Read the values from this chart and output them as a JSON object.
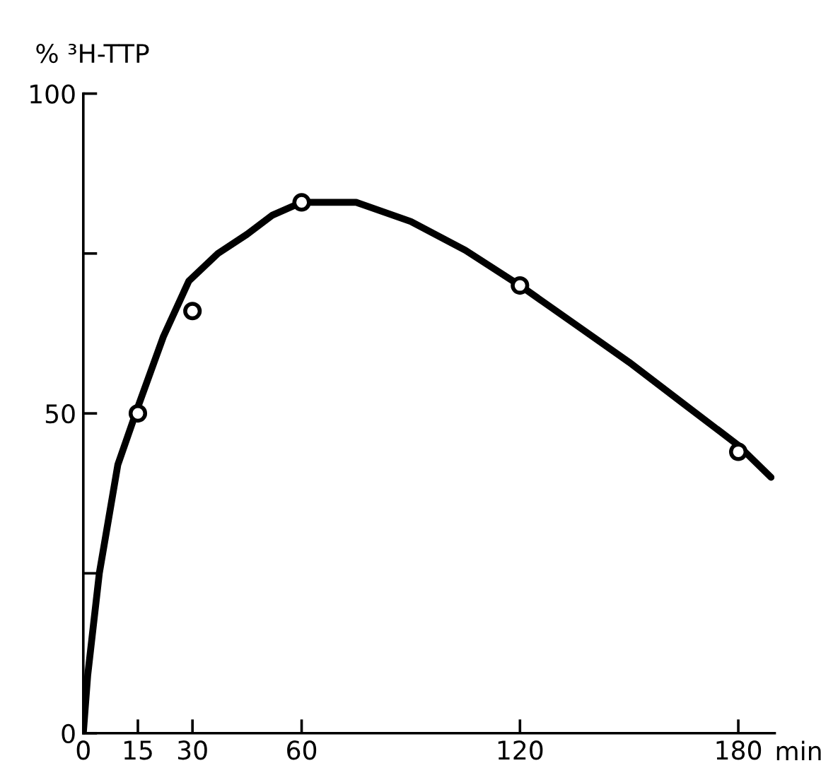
{
  "chart_data": {
    "type": "scatter",
    "ylabel": "% ³H-TTP",
    "xlabel": "min",
    "xlim": [
      0,
      190
    ],
    "ylim": [
      0,
      100
    ],
    "xticks": [
      0,
      15,
      30,
      60,
      120,
      180
    ],
    "yticks": [
      0,
      {
        "value": 25,
        "label": null
      },
      50,
      {
        "value": 75,
        "label": null
      },
      100
    ],
    "grid": false,
    "legend": false,
    "series": [
      {
        "type": "line",
        "color": "#000000",
        "marker": "none",
        "line_style": "solid",
        "x": [
          0,
          1.2,
          4.4,
          9.5,
          15,
          22,
          29,
          37,
          45,
          52,
          60,
          75,
          90,
          105,
          120,
          135,
          150,
          165,
          180,
          189
        ],
        "values": [
          0,
          9,
          25,
          42,
          51,
          62,
          70.7,
          75,
          78,
          81,
          83,
          83,
          80,
          75.5,
          70,
          64,
          58,
          51.5,
          45,
          40
        ]
      },
      {
        "color": "#000000",
        "marker": "circle",
        "x": [
          15,
          30,
          60,
          120,
          180
        ],
        "values": [
          50,
          66,
          83,
          70,
          44
        ]
      }
    ]
  }
}
